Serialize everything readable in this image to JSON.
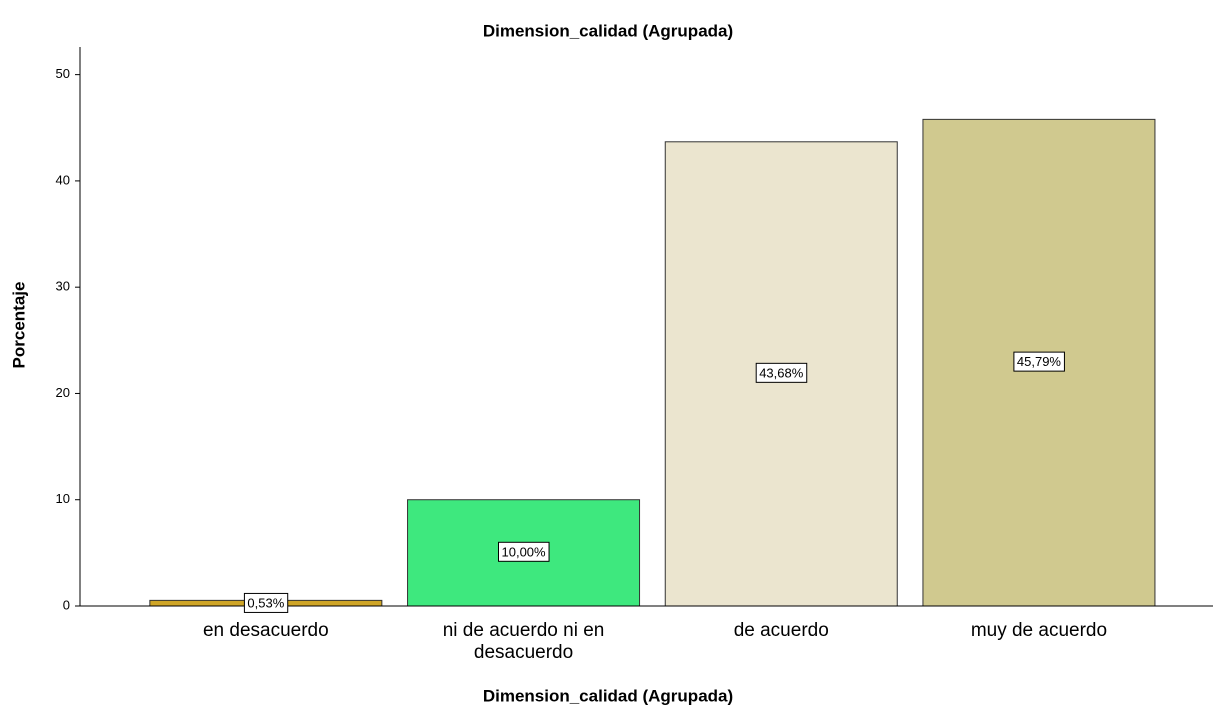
{
  "chart_data": {
    "type": "bar",
    "title": "Dimension_calidad (Agrupada)",
    "x_label": "Dimension_calidad (Agrupada)",
    "y_label": "Porcentaje",
    "categories": [
      "en desacuerdo",
      "ni de acuerdo ni en desacuerdo",
      "de acuerdo",
      "muy de acuerdo"
    ],
    "values": [
      0.53,
      10.0,
      43.68,
      45.79
    ],
    "value_labels": [
      "0,53%",
      "10,00%",
      "43,68%",
      "45,79%"
    ],
    "colors": [
      "#cfa526",
      "#3ee87e",
      "#ebe5cf",
      "#d0c98f"
    ],
    "ylim": [
      0,
      52.6
    ],
    "yticks": [
      0,
      10,
      20,
      30,
      40,
      50
    ],
    "grid": false
  }
}
